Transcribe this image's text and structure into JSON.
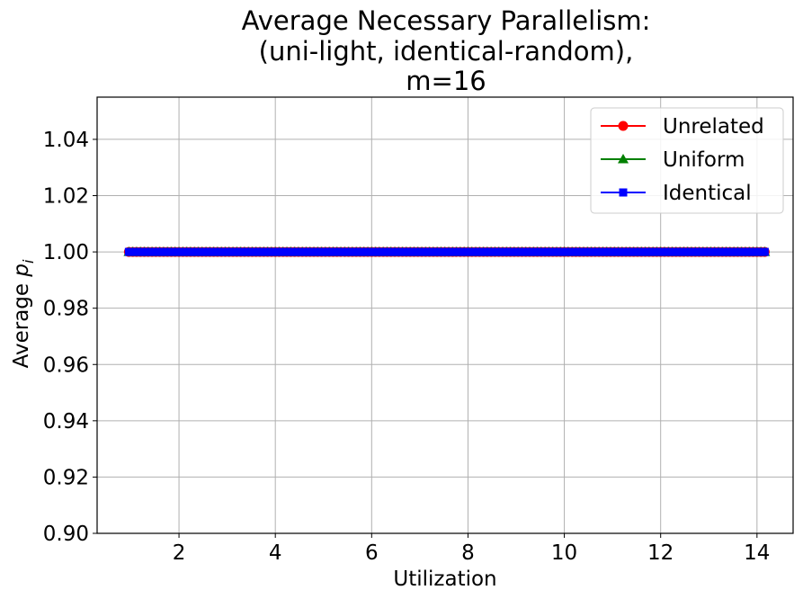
{
  "chart_data": {
    "type": "line",
    "title_lines": [
      "Average Necessary Parallelism:",
      "(uni-light, identical-random),",
      "m=16"
    ],
    "xlabel": "Utilization",
    "ylabel_main": "Average ",
    "ylabel_var": "p",
    "ylabel_sub": "i",
    "xlim": [
      0.3,
      14.75
    ],
    "ylim": [
      0.9,
      1.055
    ],
    "x_ticks": [
      2,
      4,
      6,
      8,
      10,
      12,
      14
    ],
    "x_tick_labels": [
      "2",
      "4",
      "6",
      "8",
      "10",
      "12",
      "14"
    ],
    "y_ticks": [
      0.9,
      0.92,
      0.94,
      0.96,
      0.98,
      1.0,
      1.02,
      1.04
    ],
    "y_tick_labels": [
      "0.90",
      "0.92",
      "0.94",
      "0.96",
      "0.98",
      "1.00",
      "1.02",
      "1.04"
    ],
    "grid": true,
    "legend_position": "top-right",
    "x": [
      0.96,
      1.04,
      1.12,
      1.2,
      1.28,
      1.36,
      1.44,
      1.52,
      1.6,
      1.68,
      1.76,
      1.84,
      1.92,
      2.0,
      2.08,
      2.16,
      2.24,
      2.32,
      2.4,
      2.48,
      2.56,
      2.64,
      2.72,
      2.8,
      2.88,
      2.96,
      3.04,
      3.12,
      3.2,
      3.28,
      3.36,
      3.44,
      3.52,
      3.6,
      3.68,
      3.76,
      3.84,
      3.92,
      4.0,
      4.08,
      4.16,
      4.24,
      4.32,
      4.4,
      4.48,
      4.56,
      4.64,
      4.72,
      4.8,
      4.88,
      4.96,
      5.04,
      5.12,
      5.2,
      5.28,
      5.36,
      5.44,
      5.52,
      5.6,
      5.68,
      5.76,
      5.84,
      5.92,
      6.0,
      6.08,
      6.16,
      6.24,
      6.32,
      6.4,
      6.48,
      6.56,
      6.64,
      6.72,
      6.8,
      6.88,
      6.96,
      7.04,
      7.12,
      7.2,
      7.28,
      7.36,
      7.44,
      7.52,
      7.6,
      7.68,
      7.76,
      7.84,
      7.92,
      8.0,
      8.08,
      8.16,
      8.24,
      8.32,
      8.4,
      8.48,
      8.56,
      8.64,
      8.72,
      8.8,
      8.88,
      8.96,
      9.04,
      9.12,
      9.2,
      9.28,
      9.36,
      9.44,
      9.52,
      9.6,
      9.68,
      9.76,
      9.84,
      9.92,
      10.0,
      10.08,
      10.16,
      10.24,
      10.32,
      10.4,
      10.48,
      10.56,
      10.64,
      10.72,
      10.8,
      10.88,
      10.96,
      11.04,
      11.12,
      11.2,
      11.28,
      11.36,
      11.44,
      11.52,
      11.6,
      11.68,
      11.76,
      11.84,
      11.92,
      12.0,
      12.08,
      12.16,
      12.24,
      12.32,
      12.4,
      12.48,
      12.56,
      12.64,
      12.72,
      12.8,
      12.88,
      12.96,
      13.04,
      13.12,
      13.2,
      13.28,
      13.36,
      13.44,
      13.52,
      13.6,
      13.68,
      13.76,
      13.84,
      13.92,
      14.0,
      14.08,
      14.16
    ],
    "series": [
      {
        "name": "Unrelated",
        "color": "#ff0000",
        "marker": "circle",
        "value": 1.0
      },
      {
        "name": "Uniform",
        "color": "#008000",
        "marker": "triangle",
        "value": 1.0
      },
      {
        "name": "Identical",
        "color": "#0000ff",
        "marker": "square",
        "value": 1.0
      }
    ]
  }
}
